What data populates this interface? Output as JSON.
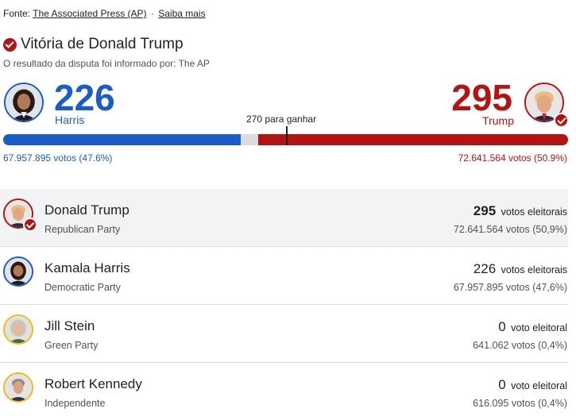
{
  "source": {
    "prefix": "Fonte:",
    "link": "The Associated Press (AP)",
    "separator": "·",
    "more_link": "Saiba mais"
  },
  "headline": {
    "icon": "check-circle-icon",
    "title": "Vitória de Donald Trump",
    "subtitle": "O resultado da disputa foi informado por: The AP"
  },
  "summary": {
    "left": {
      "count": "226",
      "name": "Harris",
      "votes": "67.957.895 votos (47.6%)",
      "color": "#1a5dc8",
      "electoral_share": 0.42
    },
    "right": {
      "count": "295",
      "name": "Trump",
      "votes": "72.641.564 votos (50.9%)",
      "color": "#b31412",
      "electoral_share": 0.548
    },
    "threshold_label": "270 para ganhar",
    "threshold_share": 0.502
  },
  "candidates": [
    {
      "name": "Donald Trump",
      "party": "Republican Party",
      "ev": "295",
      "ev_label": "votos eleitorais",
      "ev_bold": true,
      "popular": "72.641.564 votos (50,9%)",
      "winner": true,
      "ring": "#b31412"
    },
    {
      "name": "Kamala Harris",
      "party": "Democratic Party",
      "ev": "226",
      "ev_label": "votos eleitorais",
      "ev_bold": false,
      "popular": "67.957.895 votos (47,6%)",
      "winner": false,
      "ring": "#1a5dc8"
    },
    {
      "name": "Jill Stein",
      "party": "Green Party",
      "ev": "0",
      "ev_label": "voto eleitoral",
      "ev_bold": false,
      "popular": "641.062 votos (0,4%)",
      "winner": false,
      "ring": "#f2b722"
    },
    {
      "name": "Robert Kennedy",
      "party": "Independente",
      "ev": "0",
      "ev_label": "voto eleitoral",
      "ev_bold": false,
      "popular": "616.095 votos (0,4%)",
      "winner": false,
      "ring": "#f2b722"
    }
  ]
}
